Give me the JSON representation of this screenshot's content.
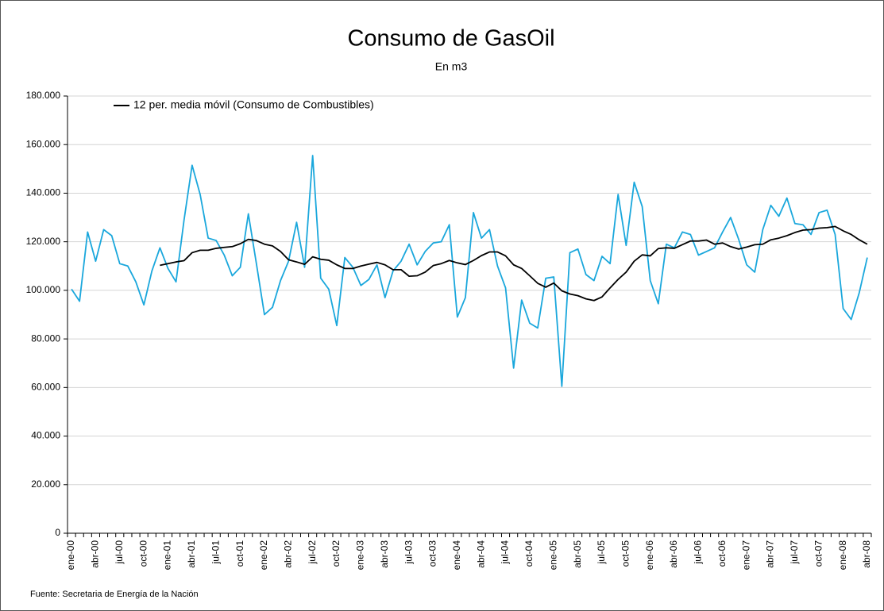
{
  "chart_data": {
    "type": "line",
    "title": "Consumo de GasOil",
    "subtitle": "En m3",
    "source": "Fuente: Secretaria de Energía de la Nación",
    "categories": [
      "ene-00",
      null,
      null,
      "abr-00",
      null,
      null,
      "jul-00",
      null,
      null,
      "oct-00",
      null,
      null,
      "ene-01",
      null,
      null,
      "abr-01",
      null,
      null,
      "jul-01",
      null,
      null,
      "oct-01",
      null,
      null,
      "ene-02",
      null,
      null,
      "abr-02",
      null,
      null,
      "jul-02",
      null,
      null,
      "oct-02",
      null,
      null,
      "ene-03",
      null,
      null,
      "abr-03",
      null,
      null,
      "jul-03",
      null,
      null,
      "oct-03",
      null,
      null,
      "ene-04",
      null,
      null,
      "abr-04",
      null,
      null,
      "jul-04",
      null,
      null,
      "oct-04",
      null,
      null,
      "ene-05",
      null,
      null,
      "abr-05",
      null,
      null,
      "jul-05",
      null,
      null,
      "oct-05",
      null,
      null,
      "ene-06",
      null,
      null,
      "abr-06",
      null,
      null,
      "jul-06",
      null,
      null,
      "oct-06",
      null,
      null,
      "ene-07",
      null,
      null,
      "abr-07",
      null,
      null,
      "jul-07",
      null,
      null,
      "oct-07",
      null,
      null,
      "ene-08",
      null,
      null,
      "abr-08"
    ],
    "series": [
      {
        "color": "#1aa7dc",
        "values": [
          100500,
          95500,
          124000,
          112000,
          125000,
          122500,
          111000,
          110000,
          103500,
          94000,
          108000,
          117500,
          109000,
          103500,
          129000,
          151500,
          139500,
          121500,
          120500,
          114500,
          106000,
          109500,
          131500,
          111000,
          90000,
          93000,
          104000,
          112000,
          128000,
          109500,
          155500,
          105000,
          100500,
          85500,
          113500,
          109500,
          102000,
          104500,
          110500,
          97000,
          108000,
          112000,
          119000,
          110500,
          116000,
          119500,
          120000,
          127000,
          89000,
          97000,
          132000,
          121500,
          125000,
          110000,
          101000,
          68000,
          96000,
          86500,
          84500,
          105000,
          105500,
          60500,
          115500,
          117000,
          106500,
          104000,
          114000,
          111000,
          139500,
          118500,
          144500,
          134500,
          104000,
          94500,
          119000,
          117500,
          124000,
          123000,
          114500,
          116000,
          117500,
          124000,
          130000,
          121000,
          110500,
          107500,
          125000,
          135000,
          130500,
          138000,
          127500,
          127000,
          123000,
          132000,
          133000,
          123000,
          92500,
          88000,
          99000,
          113500
        ]
      },
      {
        "name": "12 per. media móvil (Consumo de Combustibles)",
        "color": "#000000",
        "values": [
          null,
          null,
          null,
          null,
          null,
          null,
          null,
          null,
          null,
          null,
          null,
          110300,
          111000,
          111700,
          112200,
          115500,
          116500,
          116500,
          117300,
          117700,
          118000,
          119200,
          121000,
          120500,
          119000,
          118300,
          116000,
          112600,
          111700,
          110700,
          113800,
          112800,
          112400,
          110500,
          109000,
          109000,
          110000,
          110800,
          111500,
          110500,
          108500,
          108500,
          105800,
          106000,
          107500,
          110200,
          111000,
          112300,
          111300,
          110600,
          112300,
          114300,
          115800,
          115800,
          114200,
          110500,
          109000,
          106000,
          102900,
          101300,
          103000,
          99800,
          98500,
          97800,
          96500,
          95800,
          97300,
          101000,
          104500,
          107500,
          112000,
          114600,
          114200,
          117200,
          117500,
          117300,
          118800,
          120300,
          120300,
          120700,
          119000,
          119500,
          118000,
          117000,
          117800,
          118800,
          119000,
          120800,
          121500,
          122500,
          123800,
          124800,
          125000,
          125600,
          125800,
          126300,
          124500,
          123000,
          120800,
          119000
        ]
      }
    ],
    "ylim": [
      0,
      180000
    ],
    "yticks": [
      0,
      {
        "value": 20000,
        "label": "20.000"
      },
      {
        "value": 40000,
        "label": "40.000"
      },
      {
        "value": 60000,
        "label": "60.000"
      },
      {
        "value": 80000,
        "label": "80.000"
      },
      {
        "value": 100000,
        "label": "100.000"
      },
      {
        "value": 120000,
        "label": "120.000"
      },
      {
        "value": 140000,
        "label": "140.000"
      },
      {
        "value": 160000,
        "label": "160.000"
      },
      {
        "value": 180000,
        "label": "180.000"
      }
    ],
    "grid": true,
    "legend": "top-left"
  }
}
